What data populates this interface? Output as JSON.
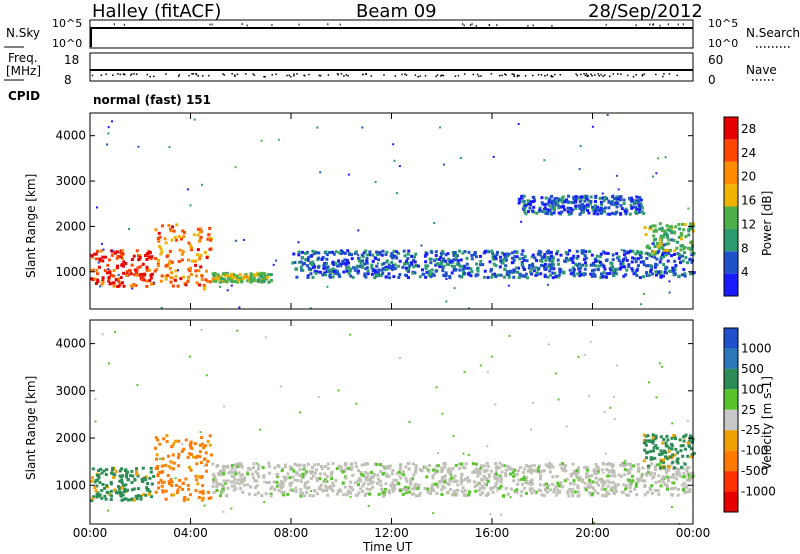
{
  "header": {
    "station": "Halley (fitACF)",
    "beam": "Beam 09",
    "date": "28/Sep/2012"
  },
  "strips": {
    "nsky_label": "N.Sky",
    "nsearch_label": "N.Search",
    "nsky_ticks": [
      "10^5",
      "10^0"
    ],
    "nsearch_ticks": [
      "10^5",
      "10^0"
    ],
    "freq_label": "Freq.",
    "freq_unit": "[MHz]",
    "freq_ticks": [
      "18",
      "8"
    ],
    "nave_label": "Nave",
    "nave_ticks": [
      "60",
      "0"
    ],
    "cpid_label": "CPID",
    "cpid_value": "normal (fast) 151"
  },
  "colors": {
    "power": [
      "#1a1aff",
      "#1f52c9",
      "#2c9b6e",
      "#4bb04a",
      "#f0b400",
      "#ff8c00",
      "#ff4500",
      "#e60000"
    ],
    "velocity": [
      "#1f4fc9",
      "#2a78b8",
      "#2c8c55",
      "#58c42a",
      "#c8c8c8",
      "#f0a000",
      "#ff7a00",
      "#ff3000",
      "#e60000"
    ],
    "ground_scatter": "#c0c0b8"
  },
  "chart_data": [
    {
      "type": "heatmap",
      "name": "power",
      "ylabel": "Slant Range [km]",
      "xlabel": "Time UT",
      "x_ticks": [
        "00:00",
        "04:00",
        "08:00",
        "12:00",
        "16:00",
        "20:00",
        "00:00"
      ],
      "xlim_hours": [
        0,
        24
      ],
      "ylim_km": [
        180,
        4500
      ],
      "y_ticks": [
        1000,
        2000,
        3000,
        4000
      ],
      "colorbar": {
        "label": "Power [dB]",
        "ticks": [
          4,
          8,
          12,
          16,
          20,
          24,
          28
        ],
        "range": [
          0,
          30
        ]
      },
      "echo_regions": [
        {
          "t0": 0.0,
          "t1": 2.5,
          "r0": 700,
          "r1": 1500,
          "level": 26
        },
        {
          "t0": 2.5,
          "t1": 4.8,
          "r0": 650,
          "r1": 2100,
          "level": 22
        },
        {
          "t0": 4.8,
          "t1": 7.2,
          "r0": 800,
          "r1": 1000,
          "level": 14
        },
        {
          "t0": 8.0,
          "t1": 24.0,
          "r0": 900,
          "r1": 1500,
          "level": 6
        },
        {
          "t0": 17.0,
          "t1": 22.0,
          "r0": 2300,
          "r1": 2700,
          "level": 6
        },
        {
          "t0": 22.0,
          "t1": 24.0,
          "r0": 1400,
          "r1": 2100,
          "level": 12
        }
      ]
    },
    {
      "type": "heatmap",
      "name": "velocity",
      "ylabel": "Slant Range [km]",
      "xlabel": "Time UT",
      "x_ticks": [
        "00:00",
        "04:00",
        "08:00",
        "12:00",
        "16:00",
        "20:00",
        "00:00"
      ],
      "xlim_hours": [
        0,
        24
      ],
      "ylim_km": [
        180,
        4500
      ],
      "y_ticks": [
        1000,
        2000,
        3000,
        4000
      ],
      "colorbar": {
        "label": "Velocity [m s-1]",
        "ticks": [
          "1000",
          "500",
          "100",
          "25",
          "-25",
          "-100",
          "-500",
          "-1000"
        ]
      },
      "echo_regions": [
        {
          "t0": 0.0,
          "t1": 2.5,
          "r0": 700,
          "r1": 1400,
          "level": 100
        },
        {
          "t0": 2.5,
          "t1": 4.8,
          "r0": 700,
          "r1": 2100,
          "level": -100
        },
        {
          "t0": 4.8,
          "t1": 24.0,
          "r0": 800,
          "r1": 1500,
          "level": 0
        },
        {
          "t0": 22.0,
          "t1": 24.0,
          "r0": 1400,
          "r1": 2100,
          "level": 100
        }
      ]
    }
  ]
}
